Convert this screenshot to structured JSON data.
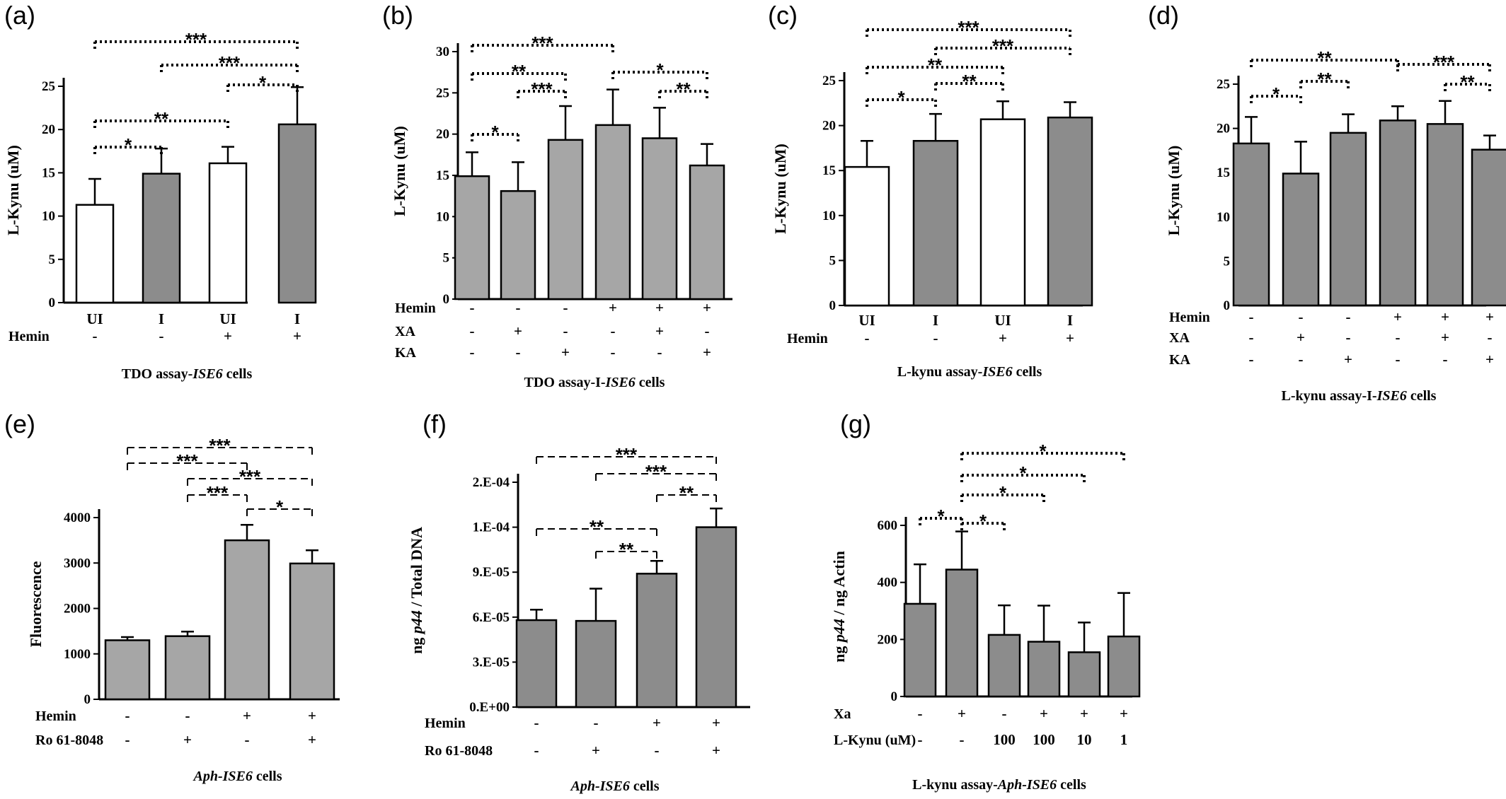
{
  "colors": {
    "white_bar": "#ffffff",
    "dark_bar": "#8c8c8c",
    "light_bar": "#a6a6a6",
    "axis": "#000000"
  },
  "chart_data": [
    {
      "panel": "(a)",
      "type": "bar",
      "ylabel": "L-Kynu (uM)",
      "ylim": [
        0,
        25
      ],
      "yticks": [
        "0",
        "5",
        "10",
        "15",
        "20",
        "25"
      ],
      "caption": {
        "pre": "TDO assay-",
        "em": "ISE6",
        "post": " cells"
      },
      "values": [
        11.3,
        14.9,
        16.1,
        20.6
      ],
      "errors": [
        3.0,
        2.9,
        1.9,
        4.3
      ],
      "fills": [
        "white_bar",
        "dark_bar",
        "white_bar",
        "dark_bar"
      ],
      "conditions": [
        {
          "label": "",
          "values": [
            "UI",
            "I",
            "UI",
            "I"
          ]
        },
        {
          "label": "Hemin",
          "values": [
            "-",
            "-",
            "+",
            "+"
          ]
        }
      ],
      "significance": [
        {
          "from": 0,
          "to": 3,
          "label": "***"
        },
        {
          "from": 1,
          "to": 3,
          "label": "***"
        },
        {
          "from": 2,
          "to": 3,
          "label": "*"
        },
        {
          "from": 0,
          "to": 2,
          "label": "**"
        },
        {
          "from": 0,
          "to": 1,
          "label": "*"
        }
      ]
    },
    {
      "panel": "(b)",
      "type": "bar",
      "ylabel": "L-Kynu (uM)",
      "ylim": [
        0,
        30
      ],
      "yticks": [
        "0",
        "5",
        "10",
        "15",
        "20",
        "25",
        "30"
      ],
      "caption": {
        "pre": "TDO assay-I-",
        "em": "ISE6",
        "post": " cells"
      },
      "values": [
        14.9,
        13.1,
        19.3,
        21.1,
        19.5,
        16.2
      ],
      "errors": [
        2.9,
        3.5,
        4.1,
        4.3,
        3.7,
        2.6
      ],
      "fills": [
        "light_bar",
        "light_bar",
        "light_bar",
        "light_bar",
        "light_bar",
        "light_bar"
      ],
      "conditions": [
        {
          "label": "Hemin",
          "values": [
            "-",
            "-",
            "-",
            "+",
            "+",
            "+"
          ]
        },
        {
          "label": "XA",
          "values": [
            "-",
            "+",
            "-",
            "-",
            "+",
            "-"
          ]
        },
        {
          "label": "KA",
          "values": [
            "-",
            "-",
            "+",
            "-",
            "-",
            "+"
          ]
        }
      ],
      "significance": [
        {
          "from": 0,
          "to": 3,
          "label": "***"
        },
        {
          "from": 0,
          "to": 2,
          "label": "**"
        },
        {
          "from": 3,
          "to": 5,
          "label": "*"
        },
        {
          "from": 1,
          "to": 2,
          "label": "***"
        },
        {
          "from": 4,
          "to": 5,
          "label": "**"
        },
        {
          "from": 0,
          "to": 1,
          "label": "*"
        }
      ]
    },
    {
      "panel": "(c)",
      "type": "bar",
      "ylabel": "L-Kynu (uM)",
      "ylim": [
        0,
        25
      ],
      "yticks": [
        "0",
        "5",
        "10",
        "15",
        "20",
        "25"
      ],
      "caption": {
        "pre": "L-kynu assay-",
        "em": "ISE6",
        "post": " cells"
      },
      "values": [
        15.4,
        18.3,
        20.7,
        20.9
      ],
      "errors": [
        2.9,
        3.0,
        2.0,
        1.7
      ],
      "fills": [
        "white_bar",
        "dark_bar",
        "white_bar",
        "dark_bar"
      ],
      "conditions": [
        {
          "label": "",
          "values": [
            "UI",
            "I",
            "UI",
            "I"
          ]
        },
        {
          "label": "Hemin",
          "values": [
            "-",
            "-",
            "+",
            "+"
          ]
        }
      ],
      "significance": [
        {
          "from": 0,
          "to": 3,
          "label": "***"
        },
        {
          "from": 1,
          "to": 3,
          "label": "***"
        },
        {
          "from": 0,
          "to": 2,
          "label": "**"
        },
        {
          "from": 1,
          "to": 2,
          "label": "**"
        },
        {
          "from": 0,
          "to": 1,
          "label": "*"
        }
      ]
    },
    {
      "panel": "(d)",
      "type": "bar",
      "ylabel": "L-Kynu (uM)",
      "ylim": [
        0,
        25
      ],
      "yticks": [
        "0",
        "5",
        "10",
        "15",
        "20",
        "25"
      ],
      "caption": {
        "pre": "L-kynu assay-I-",
        "em": "ISE6",
        "post": " cells"
      },
      "values": [
        18.3,
        14.9,
        19.5,
        20.9,
        20.5,
        17.6
      ],
      "errors": [
        3.0,
        3.6,
        2.1,
        1.6,
        2.6,
        1.6
      ],
      "fills": [
        "dark_bar",
        "dark_bar",
        "dark_bar",
        "dark_bar",
        "dark_bar",
        "dark_bar"
      ],
      "conditions": [
        {
          "label": "Hemin",
          "values": [
            "-",
            "-",
            "-",
            "+",
            "+",
            "+"
          ]
        },
        {
          "label": "XA",
          "values": [
            "-",
            "+",
            "-",
            "-",
            "+",
            "-"
          ]
        },
        {
          "label": "KA",
          "values": [
            "-",
            "-",
            "+",
            "-",
            "-",
            "+"
          ]
        }
      ],
      "significance": [
        {
          "from": 0,
          "to": 3,
          "label": "**"
        },
        {
          "from": 3,
          "to": 5,
          "label": "***"
        },
        {
          "from": 1,
          "to": 2,
          "label": "**"
        },
        {
          "from": 4,
          "to": 5,
          "label": "**"
        },
        {
          "from": 0,
          "to": 1,
          "label": "*"
        }
      ]
    },
    {
      "panel": "(e)",
      "type": "bar",
      "ylabel": "Fluorescence",
      "ylim": [
        0,
        4000
      ],
      "yticks": [
        "0",
        "1000",
        "2000",
        "3000",
        "4000"
      ],
      "caption": {
        "pre": "",
        "em": "Aph-ISE6",
        "post": " cells"
      },
      "values": [
        1300,
        1390,
        3500,
        2990
      ],
      "errors": [
        70,
        100,
        340,
        290
      ],
      "fills": [
        "light_bar",
        "light_bar",
        "light_bar",
        "light_bar"
      ],
      "conditions": [
        {
          "label": "Hemin",
          "values": [
            "-",
            "-",
            "+",
            "+"
          ]
        },
        {
          "label": "Ro 61-8048",
          "values": [
            "-",
            "+",
            "-",
            "+"
          ]
        }
      ],
      "significance": [
        {
          "from": 0,
          "to": 3,
          "label": "***"
        },
        {
          "from": 0,
          "to": 2,
          "label": "***"
        },
        {
          "from": 1,
          "to": 3,
          "label": "***"
        },
        {
          "from": 1,
          "to": 2,
          "label": "***"
        },
        {
          "from": 2,
          "to": 3,
          "label": "*"
        }
      ]
    },
    {
      "panel": "(f)",
      "type": "bar",
      "ylabel_pre": "ng ",
      "ylabel_em": "p44",
      "ylabel_post": " / Total DNA",
      "ylim": [
        0,
        0.00015
      ],
      "yticks": [
        "0.E+00",
        "3.E-05",
        "6.E-05",
        "9.E-05",
        "1.E-04",
        "2.E-04"
      ],
      "caption": {
        "pre": "",
        "em": "Aph-ISE6",
        "post": " cells"
      },
      "values": [
        5.8e-05,
        5.75e-05,
        8.9e-05,
        0.00012
      ],
      "errors": [
        7e-06,
        2.15e-05,
        8.5e-06,
        1.25e-05
      ],
      "fills": [
        "dark_bar",
        "dark_bar",
        "dark_bar",
        "dark_bar"
      ],
      "conditions": [
        {
          "label": "Hemin",
          "values": [
            "-",
            "-",
            "+",
            "+"
          ]
        },
        {
          "label": "Ro 61-8048",
          "values": [
            "-",
            "+",
            "-",
            "+"
          ]
        }
      ],
      "significance": [
        {
          "from": 0,
          "to": 3,
          "label": "***"
        },
        {
          "from": 1,
          "to": 3,
          "label": "***"
        },
        {
          "from": 2,
          "to": 3,
          "label": "**"
        },
        {
          "from": 0,
          "to": 2,
          "label": "**"
        },
        {
          "from": 1,
          "to": 2,
          "label": "**"
        }
      ]
    },
    {
      "panel": "(g)",
      "type": "bar",
      "ylabel_pre": "ng ",
      "ylabel_em": "p44",
      "ylabel_post": " / ng Actin",
      "ylim": [
        0,
        650
      ],
      "yticks": [
        "0",
        "200",
        "400",
        "600"
      ],
      "caption": {
        "pre": "L-kynu assay-",
        "em": "Aph-ISE6",
        "post": " cells"
      },
      "values": [
        352,
        482,
        234,
        208,
        168,
        228
      ],
      "errors": [
        150,
        145,
        112,
        137,
        113,
        165
      ],
      "fills": [
        "dark_bar",
        "dark_bar",
        "dark_bar",
        "dark_bar",
        "dark_bar",
        "dark_bar"
      ],
      "conditions": [
        {
          "label": "Xa",
          "values": [
            "-",
            "+",
            "-",
            "+",
            "+",
            "+"
          ]
        },
        {
          "label": "L-Kynu (uM)",
          "values": [
            "-",
            "-",
            "100",
            "100",
            "10",
            "1"
          ]
        }
      ],
      "significance": [
        {
          "from": 1,
          "to": 5,
          "label": "*"
        },
        {
          "from": 1,
          "to": 4,
          "label": "*"
        },
        {
          "from": 1,
          "to": 3,
          "label": "*"
        },
        {
          "from": 0,
          "to": 1,
          "label": "*"
        },
        {
          "from": 1,
          "to": 2,
          "label": "*"
        }
      ]
    }
  ]
}
